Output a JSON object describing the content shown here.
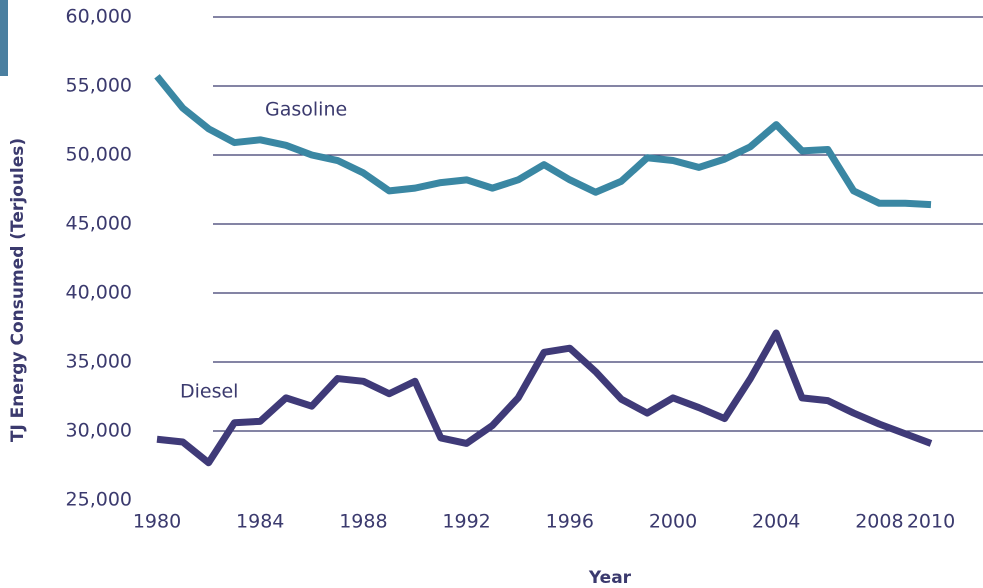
{
  "chart_data": {
    "type": "line",
    "x_label": "Year",
    "y_label": "TJ Energy Consumed (Terjoules)",
    "x": [
      1980,
      1981,
      1982,
      1983,
      1984,
      1985,
      1986,
      1987,
      1988,
      1989,
      1990,
      1991,
      1992,
      1993,
      1994,
      1995,
      1996,
      1997,
      1998,
      1999,
      2000,
      2001,
      2002,
      2003,
      2004,
      2005,
      2006,
      2007,
      2008,
      2009,
      2010
    ],
    "series": [
      {
        "name": "Gasoline",
        "color": "#3a87a3",
        "values": [
          55700,
          53400,
          51900,
          50900,
          51100,
          50700,
          50000,
          49600,
          48700,
          47400,
          47600,
          48000,
          48200,
          47600,
          48200,
          49300,
          48200,
          47300,
          48100,
          49800,
          49600,
          49100,
          49700,
          50600,
          52200,
          50300,
          50400,
          47400,
          46500,
          46500,
          46400
        ]
      },
      {
        "name": "Diesel",
        "color": "#3f3a78",
        "values": [
          29400,
          29200,
          27700,
          30600,
          30700,
          32400,
          31800,
          33800,
          33600,
          32700,
          33600,
          29500,
          29100,
          30400,
          32400,
          35700,
          36000,
          34300,
          32300,
          31300,
          32400,
          31700,
          30900,
          33800,
          37100,
          32400,
          32200,
          31300,
          30500,
          29800,
          29100
        ]
      }
    ],
    "xlim": [
      1980,
      2010
    ],
    "xticks": [
      1980,
      1984,
      1988,
      1992,
      1996,
      2000,
      2004,
      2008,
      2010
    ],
    "ylim": [
      25000,
      60000
    ],
    "yticks": [
      {
        "value": 25000,
        "label": "25,000"
      },
      {
        "value": 30000,
        "label": "30,000"
      },
      {
        "value": 35000,
        "label": "35,000"
      },
      {
        "value": 40000,
        "label": "40,000"
      },
      {
        "value": 45000,
        "label": "45,000"
      },
      {
        "value": 50000,
        "label": "50,000"
      },
      {
        "value": 55000,
        "label": "55,000"
      },
      {
        "value": 60000,
        "label": "60,000"
      }
    ],
    "grid": true
  }
}
